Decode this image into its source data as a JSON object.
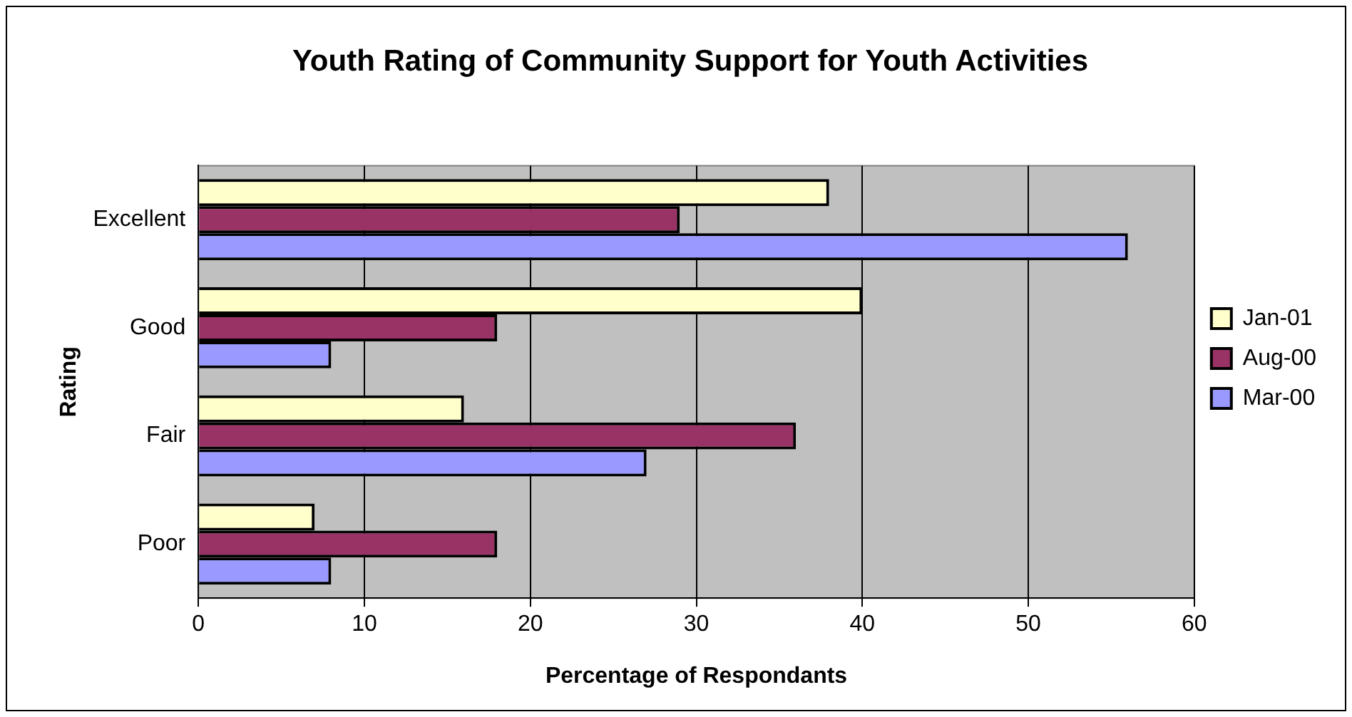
{
  "chart_data": {
    "type": "bar",
    "orientation": "horizontal",
    "title": "Youth Rating of Community Support for Youth Activities",
    "xlabel": "Percentage of Respondants",
    "ylabel": "Rating",
    "categories": [
      "Excellent",
      "Good",
      "Fair",
      "Poor"
    ],
    "series": [
      {
        "name": "Jan-01",
        "color": "#ffffcc",
        "values": [
          38,
          40,
          16,
          7
        ]
      },
      {
        "name": "Aug-00",
        "color": "#993366",
        "values": [
          29,
          18,
          36,
          18
        ]
      },
      {
        "name": "Mar-00",
        "color": "#9999ff",
        "values": [
          56,
          8,
          27,
          8
        ]
      }
    ],
    "xlim": [
      0,
      60
    ],
    "xticks": [
      0,
      10,
      20,
      30,
      40,
      50,
      60
    ],
    "grid": "x",
    "legend": "right"
  }
}
